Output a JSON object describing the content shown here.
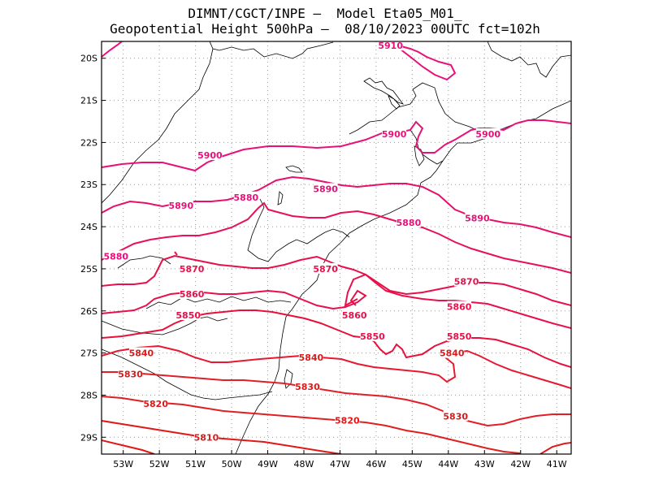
{
  "title": {
    "line1": "DIMNT/CGCT/INPE —  Model Eta05_M01_",
    "line2": "Geopotential Height 500hPa —  08/10/2023 00UTC fct=102h"
  },
  "axes": {
    "lat_labels": [
      "20S",
      "21S",
      "22S",
      "23S",
      "24S",
      "25S",
      "26S",
      "27S",
      "28S",
      "29S"
    ],
    "lon_labels": [
      "53W",
      "52W",
      "51W",
      "50W",
      "49W",
      "48W",
      "47W",
      "46W",
      "45W",
      "44W",
      "43W",
      "42W",
      "41W"
    ]
  },
  "chart_data": {
    "type": "contour",
    "title": "Geopotential Height 500hPa",
    "variable": "geopotential height (gpm)",
    "lat_range": [
      -29.4,
      -19.6
    ],
    "lon_range": [
      -53.6,
      -40.6
    ],
    "contour_interval": 10,
    "contour_levels": [
      5810,
      5820,
      5830,
      5840,
      5850,
      5860,
      5870,
      5880,
      5890,
      5900,
      5910
    ],
    "grid": true,
    "labels": [
      {
        "text": "5910",
        "lon": -45.6,
        "lat": -19.7
      },
      {
        "text": "5900",
        "lon": -45.5,
        "lat": -21.8
      },
      {
        "text": "5900",
        "lon": -42.9,
        "lat": -21.8
      },
      {
        "text": "5900",
        "lon": -50.6,
        "lat": -22.3
      },
      {
        "text": "5890",
        "lon": -47.4,
        "lat": -23.1
      },
      {
        "text": "5890",
        "lon": -51.4,
        "lat": -23.5
      },
      {
        "text": "5890",
        "lon": -43.2,
        "lat": -23.8
      },
      {
        "text": "5880",
        "lon": -49.6,
        "lat": -23.3
      },
      {
        "text": "5880",
        "lon": -45.1,
        "lat": -23.9
      },
      {
        "text": "5880",
        "lon": -53.2,
        "lat": -24.7
      },
      {
        "text": "5870",
        "lon": -51.1,
        "lat": -25.0
      },
      {
        "text": "5870",
        "lon": -47.4,
        "lat": -25.0
      },
      {
        "text": "5870",
        "lon": -43.5,
        "lat": -25.3
      },
      {
        "text": "5860",
        "lon": -51.1,
        "lat": -25.6
      },
      {
        "text": "5860",
        "lon": -46.6,
        "lat": -26.1
      },
      {
        "text": "5860",
        "lon": -43.7,
        "lat": -25.9
      },
      {
        "text": "5850",
        "lon": -51.2,
        "lat": -26.1
      },
      {
        "text": "5850",
        "lon": -46.1,
        "lat": -26.6
      },
      {
        "text": "5850",
        "lon": -43.7,
        "lat": -26.6
      },
      {
        "text": "5840",
        "lon": -52.5,
        "lat": -27.0
      },
      {
        "text": "5840",
        "lon": -47.8,
        "lat": -27.1
      },
      {
        "text": "5840",
        "lon": -43.9,
        "lat": -27.0
      },
      {
        "text": "5830",
        "lon": -52.8,
        "lat": -27.5
      },
      {
        "text": "5830",
        "lon": -47.9,
        "lat": -27.8
      },
      {
        "text": "5830",
        "lon": -43.8,
        "lat": -28.5
      },
      {
        "text": "5820",
        "lon": -52.1,
        "lat": -28.2
      },
      {
        "text": "5820",
        "lon": -46.8,
        "lat": -28.6
      },
      {
        "text": "5810",
        "lon": -50.7,
        "lat": -29.0
      }
    ]
  },
  "colors": {
    "contour_high": "#e8107a",
    "contour_mid": "#e8104a",
    "contour_low": "#e01818",
    "map_line": "#000000",
    "grid": "#999999"
  }
}
